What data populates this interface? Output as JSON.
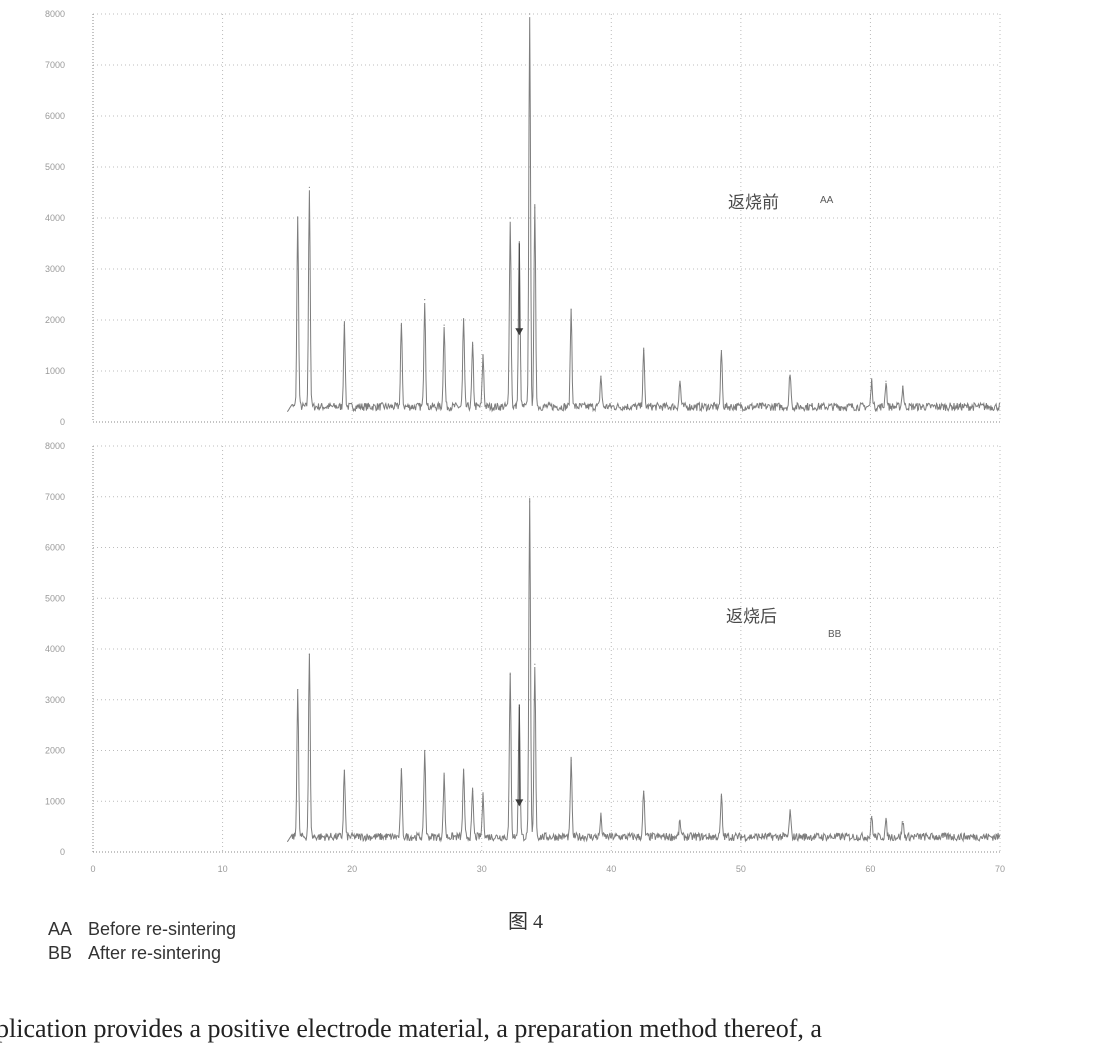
{
  "figure_caption": "图 4",
  "legend": [
    {
      "code": "AA",
      "text": "Before re-sintering"
    },
    {
      "code": "BB",
      "text": "After re-sintering"
    }
  ],
  "footer_text": "plication provides a positive electrode material, a preparation method thereof, a",
  "colors": {
    "trace": "#7d7d7d",
    "grid": "#bcbcbc",
    "axis": "#8a8a8a",
    "arrow": "#3a3a3a"
  },
  "chart_data": [
    {
      "type": "line",
      "title": "",
      "label_cn": "返烧前",
      "label_code": "AA",
      "xlabel": "",
      "ylabel": "",
      "xlim": [
        0,
        70
      ],
      "ylim": [
        0,
        8000
      ],
      "xticks": [
        "0",
        "10",
        "20",
        "30",
        "40",
        "50",
        "60",
        "70"
      ],
      "yticks": [
        "0",
        "1000",
        "2000",
        "3000",
        "4000",
        "5000",
        "6000",
        "7000",
        "8000"
      ],
      "grid": true,
      "baseline": 300,
      "peaks": [
        {
          "x": 15.8,
          "y": 4000
        },
        {
          "x": 16.7,
          "y": 4600
        },
        {
          "x": 19.4,
          "y": 1900
        },
        {
          "x": 23.8,
          "y": 1900
        },
        {
          "x": 25.6,
          "y": 2400
        },
        {
          "x": 27.1,
          "y": 1900
        },
        {
          "x": 28.6,
          "y": 2000
        },
        {
          "x": 29.3,
          "y": 1500
        },
        {
          "x": 30.1,
          "y": 1300
        },
        {
          "x": 32.2,
          "y": 4000
        },
        {
          "x": 32.9,
          "y": 3500
        },
        {
          "x": 33.7,
          "y": 8000
        },
        {
          "x": 34.1,
          "y": 4200
        },
        {
          "x": 36.9,
          "y": 2200
        },
        {
          "x": 39.2,
          "y": 900
        },
        {
          "x": 42.5,
          "y": 1400
        },
        {
          "x": 45.3,
          "y": 800
        },
        {
          "x": 48.5,
          "y": 1400
        },
        {
          "x": 53.8,
          "y": 1000
        },
        {
          "x": 60.1,
          "y": 800
        },
        {
          "x": 61.2,
          "y": 800
        },
        {
          "x": 62.5,
          "y": 700
        }
      ],
      "arrow_x": 32.9,
      "arrow_y_from": 3500,
      "arrow_y_to": 1700
    },
    {
      "type": "line",
      "title": "",
      "label_cn": "返烧后",
      "label_code": "BB",
      "xlabel": "",
      "ylabel": "",
      "xlim": [
        0,
        70
      ],
      "ylim": [
        0,
        8000
      ],
      "xticks": [
        "0",
        "10",
        "20",
        "30",
        "40",
        "50",
        "60",
        "70"
      ],
      "yticks": [
        "0",
        "1000",
        "2000",
        "3000",
        "4000",
        "5000",
        "6000",
        "7000",
        "8000"
      ],
      "grid": true,
      "baseline": 300,
      "peaks": [
        {
          "x": 15.8,
          "y": 3200
        },
        {
          "x": 16.7,
          "y": 3900
        },
        {
          "x": 19.4,
          "y": 1600
        },
        {
          "x": 23.8,
          "y": 1600
        },
        {
          "x": 25.6,
          "y": 2000
        },
        {
          "x": 27.1,
          "y": 1500
        },
        {
          "x": 28.6,
          "y": 1600
        },
        {
          "x": 29.3,
          "y": 1200
        },
        {
          "x": 30.1,
          "y": 1100
        },
        {
          "x": 32.2,
          "y": 3500
        },
        {
          "x": 32.9,
          "y": 2900
        },
        {
          "x": 33.7,
          "y": 6900
        },
        {
          "x": 34.1,
          "y": 3700
        },
        {
          "x": 36.9,
          "y": 1800
        },
        {
          "x": 39.2,
          "y": 700
        },
        {
          "x": 42.5,
          "y": 1200
        },
        {
          "x": 45.3,
          "y": 600
        },
        {
          "x": 48.5,
          "y": 1100
        },
        {
          "x": 53.8,
          "y": 800
        },
        {
          "x": 60.1,
          "y": 700
        },
        {
          "x": 61.2,
          "y": 600
        },
        {
          "x": 62.5,
          "y": 600
        }
      ],
      "arrow_x": 32.9,
      "arrow_y_from": 2900,
      "arrow_y_to": 900
    }
  ]
}
